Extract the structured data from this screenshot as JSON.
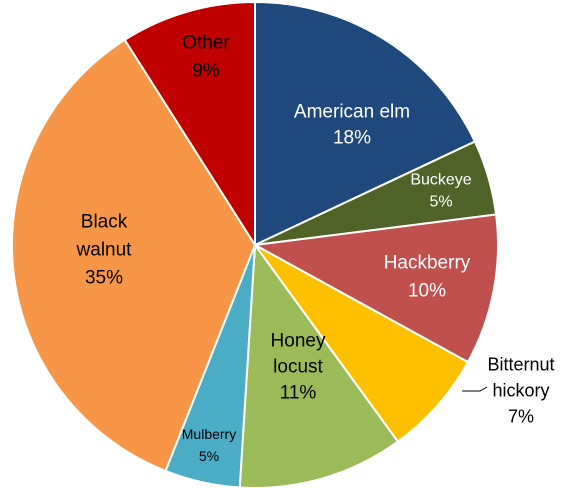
{
  "chart_data": {
    "type": "pie",
    "start_angle_deg": 0,
    "direction": "clockwise",
    "slices": [
      {
        "label": [
          "American elm"
        ],
        "pct_label": "18%",
        "value": 18,
        "color": "#1f497d",
        "text_color": "#ffffff"
      },
      {
        "label": [
          "Buckeye"
        ],
        "pct_label": "5%",
        "value": 5,
        "color": "#4f6228",
        "text_color": "#ffffff"
      },
      {
        "label": [
          "Hackberry"
        ],
        "pct_label": "10%",
        "value": 10,
        "color": "#c0504d",
        "text_color": "#ffffff"
      },
      {
        "label": [
          "Bitternut",
          "hickory"
        ],
        "pct_label": "7%",
        "value": 7,
        "color": "#ffc000",
        "text_color": "#000000"
      },
      {
        "label": [
          "Honey",
          "locust"
        ],
        "pct_label": "11%",
        "value": 11,
        "color": "#9bbb59",
        "text_color": "#000000"
      },
      {
        "label": [
          "Mulberry"
        ],
        "pct_label": "5%",
        "value": 5,
        "color": "#4bacc6",
        "text_color": "#000000"
      },
      {
        "label": [
          "Black",
          "walnut"
        ],
        "pct_label": "35%",
        "value": 35,
        "color": "#f79646",
        "text_color": "#000000"
      },
      {
        "label": [
          "Other"
        ],
        "pct_label": "9%",
        "value": 9,
        "color": "#c00000",
        "text_color": "#000000"
      }
    ]
  }
}
